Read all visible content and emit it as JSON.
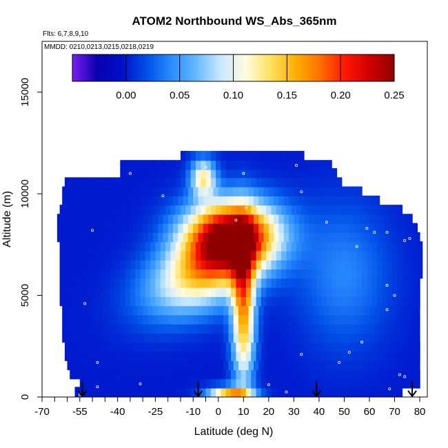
{
  "chart_data": {
    "type": "heatmap",
    "title": "ATOM2 Northbound WS_Abs_365nm",
    "flights_note": "Flts: 6,7,8,9,10",
    "dates_note": "MMDD: 0210,0213,0215,0218,0219",
    "xlabel": "Latitude (deg N)",
    "ylabel": "Altitude (m)",
    "xlim": [
      -70,
      83
    ],
    "ylim": [
      0,
      17500
    ],
    "x_ticks": [
      -70,
      -55,
      -40,
      -25,
      -10,
      0,
      10,
      20,
      30,
      40,
      50,
      60,
      70,
      80
    ],
    "x_tick_labels": [
      "-70",
      "-55",
      "-40",
      "-25",
      "-10",
      "0",
      "10",
      "20",
      "30",
      "40",
      "50",
      "60",
      "70",
      "80"
    ],
    "x_minor_ticks": [
      -65,
      -60,
      -50,
      -45,
      -35,
      -30,
      -20,
      -15,
      -5
    ],
    "y_ticks": [
      0,
      5000,
      10000,
      15000
    ],
    "y_tick_labels": [
      "0",
      "5000",
      "10000",
      "15000"
    ],
    "colorbar": {
      "range": [
        -0.05,
        0.25
      ],
      "ticks": [
        0.0,
        0.05,
        0.1,
        0.15,
        0.2,
        0.25
      ],
      "tick_labels": [
        "0.00",
        "0.05",
        "0.10",
        "0.15",
        "0.20",
        "0.25"
      ],
      "colors": [
        "#7a1ef0",
        "#0a00b0",
        "#0010c8",
        "#0050e8",
        "#2a8cff",
        "#66b8ff",
        "#c8e8ff",
        "#fffbe0",
        "#ffe060",
        "#ffb000",
        "#ff7000",
        "#ff1800",
        "#d00000",
        "#900000"
      ]
    },
    "field_model": {
      "background": 0.0,
      "plume_core": {
        "lat": 5,
        "alt": 8000,
        "value": 0.23
      },
      "tongue": {
        "lat_range": [
          -45,
          15
        ],
        "alt_range": [
          3000,
          9000
        ],
        "value": 0.15
      },
      "column": {
        "lat": 10,
        "alt_range": [
          500,
          8000
        ],
        "value": 0.18
      },
      "surface_feature": {
        "lat": 5,
        "alt": 100,
        "value": 0.16
      }
    },
    "profile_rows": [
      {
        "alt": 200,
        "lat_min": -57,
        "lat_max": 73
      },
      {
        "alt": 650,
        "lat_min": -55,
        "lat_max": 80
      },
      {
        "alt": 1100,
        "lat_min": -59,
        "lat_max": 80
      },
      {
        "alt": 1550,
        "lat_min": -60,
        "lat_max": 80
      },
      {
        "alt": 2000,
        "lat_min": -61,
        "lat_max": 80
      },
      {
        "alt": 2450,
        "lat_min": -61,
        "lat_max": 80
      },
      {
        "alt": 2900,
        "lat_min": -62,
        "lat_max": 80
      },
      {
        "alt": 3350,
        "lat_min": -62,
        "lat_max": 80
      },
      {
        "alt": 3800,
        "lat_min": -62,
        "lat_max": 80
      },
      {
        "alt": 4250,
        "lat_min": -62,
        "lat_max": 80
      },
      {
        "alt": 4700,
        "lat_min": -63,
        "lat_max": 80
      },
      {
        "alt": 5150,
        "lat_min": -63,
        "lat_max": 80
      },
      {
        "alt": 5600,
        "lat_min": -63,
        "lat_max": 80
      },
      {
        "alt": 6050,
        "lat_min": -63,
        "lat_max": 81
      },
      {
        "alt": 6500,
        "lat_min": -63,
        "lat_max": 81
      },
      {
        "alt": 6950,
        "lat_min": -63,
        "lat_max": 81
      },
      {
        "alt": 7400,
        "lat_min": -63,
        "lat_max": 81
      },
      {
        "alt": 7850,
        "lat_min": -64,
        "lat_max": 80
      },
      {
        "alt": 8300,
        "lat_min": -64,
        "lat_max": 79
      },
      {
        "alt": 8750,
        "lat_min": -64,
        "lat_max": 77
      },
      {
        "alt": 9200,
        "lat_min": -63,
        "lat_max": 73
      },
      {
        "alt": 9650,
        "lat_min": -62,
        "lat_max": 64
      },
      {
        "alt": 10100,
        "lat_min": -62,
        "lat_max": 57
      },
      {
        "alt": 10550,
        "lat_min": -61,
        "lat_max": 49
      },
      {
        "alt": 11000,
        "lat_min": -39,
        "lat_max": 47
      },
      {
        "alt": 11400,
        "lat_min": -39,
        "lat_max": 45
      },
      {
        "alt": 11850,
        "lat_min": -15,
        "lat_max": 34
      }
    ],
    "sample_points": [
      {
        "lat": -55,
        "alt": 100
      },
      {
        "lat": -48,
        "alt": 500
      },
      {
        "lat": -31,
        "alt": 650
      },
      {
        "lat": -48,
        "alt": 1700
      },
      {
        "lat": -53,
        "alt": 4600
      },
      {
        "lat": -50,
        "alt": 8200
      },
      {
        "lat": -35,
        "alt": 11000
      },
      {
        "lat": -22,
        "alt": 9900
      },
      {
        "lat": -5,
        "alt": 11300
      },
      {
        "lat": 10,
        "alt": 11000
      },
      {
        "lat": 31,
        "alt": 11400
      },
      {
        "lat": 33,
        "alt": 10100
      },
      {
        "lat": 11,
        "alt": 9300
      },
      {
        "lat": 7,
        "alt": 8700
      },
      {
        "lat": 43,
        "alt": 8600
      },
      {
        "lat": 59,
        "alt": 8300
      },
      {
        "lat": 62,
        "alt": 8100
      },
      {
        "lat": 67,
        "alt": 8100
      },
      {
        "lat": 55,
        "alt": 7400
      },
      {
        "lat": 74,
        "alt": 7700
      },
      {
        "lat": 76,
        "alt": 7800
      },
      {
        "lat": 70,
        "alt": 5000
      },
      {
        "lat": 67,
        "alt": 5500
      },
      {
        "lat": 67,
        "alt": 4300
      },
      {
        "lat": 57,
        "alt": 2700
      },
      {
        "lat": 52,
        "alt": 2200
      },
      {
        "lat": 33,
        "alt": 2100
      },
      {
        "lat": 48,
        "alt": 1700
      },
      {
        "lat": 72,
        "alt": 1100
      },
      {
        "lat": 74,
        "alt": 1000
      },
      {
        "lat": 20,
        "alt": 600
      },
      {
        "lat": 27,
        "alt": 250
      },
      {
        "lat": 68,
        "alt": 400
      }
    ],
    "arrows": [
      {
        "lat": -54,
        "alt_top": 750
      },
      {
        "lat": -8,
        "alt_top": 750
      },
      {
        "lat": 39,
        "alt_top": 750
      },
      {
        "lat": 77,
        "alt_top": 750
      }
    ]
  }
}
